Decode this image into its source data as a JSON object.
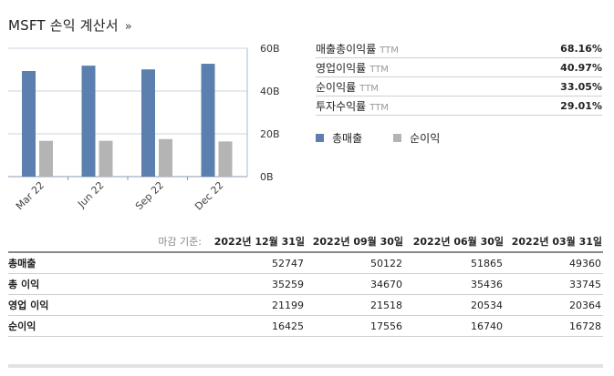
{
  "header": {
    "title": "MSFT 손익 계산서",
    "arrow": "»"
  },
  "ratios": [
    {
      "label": "매출총이익률",
      "ttm": "TTM",
      "value": "68.16%"
    },
    {
      "label": "영업이익률",
      "ttm": "TTM",
      "value": "40.97%"
    },
    {
      "label": "순이익률",
      "ttm": "TTM",
      "value": "33.05%"
    },
    {
      "label": "투자수익률",
      "ttm": "TTM",
      "value": "29.01%"
    }
  ],
  "legend": [
    {
      "label": "총매출",
      "color": "#5b7fae"
    },
    {
      "label": "순이익",
      "color": "#b4b4b4"
    }
  ],
  "chart_data": {
    "type": "bar",
    "categories": [
      "Mar 22",
      "Jun 22",
      "Sep 22",
      "Dec 22"
    ],
    "series": [
      {
        "name": "총매출",
        "values": [
          49360,
          51865,
          50122,
          52747
        ]
      },
      {
        "name": "순이익",
        "values": [
          16728,
          16740,
          17556,
          16425
        ]
      }
    ],
    "yticks": [
      "0B",
      "20B",
      "40B",
      "60B"
    ],
    "ylim": [
      0,
      60000
    ],
    "grid": true
  },
  "table": {
    "header_label": "마감 기준:",
    "columns": [
      "2022년 12월 31일",
      "2022년 09월 30일",
      "2022년 06월 30일",
      "2022년 03월 31일"
    ],
    "rows": [
      {
        "name": "총매출",
        "values": [
          "52747",
          "50122",
          "51865",
          "49360"
        ]
      },
      {
        "name": "총 이익",
        "values": [
          "35259",
          "34670",
          "35436",
          "33745"
        ]
      },
      {
        "name": "영업 이익",
        "values": [
          "21199",
          "21518",
          "20534",
          "20364"
        ]
      },
      {
        "name": "순이익",
        "values": [
          "16425",
          "17556",
          "16740",
          "16728"
        ]
      }
    ]
  }
}
